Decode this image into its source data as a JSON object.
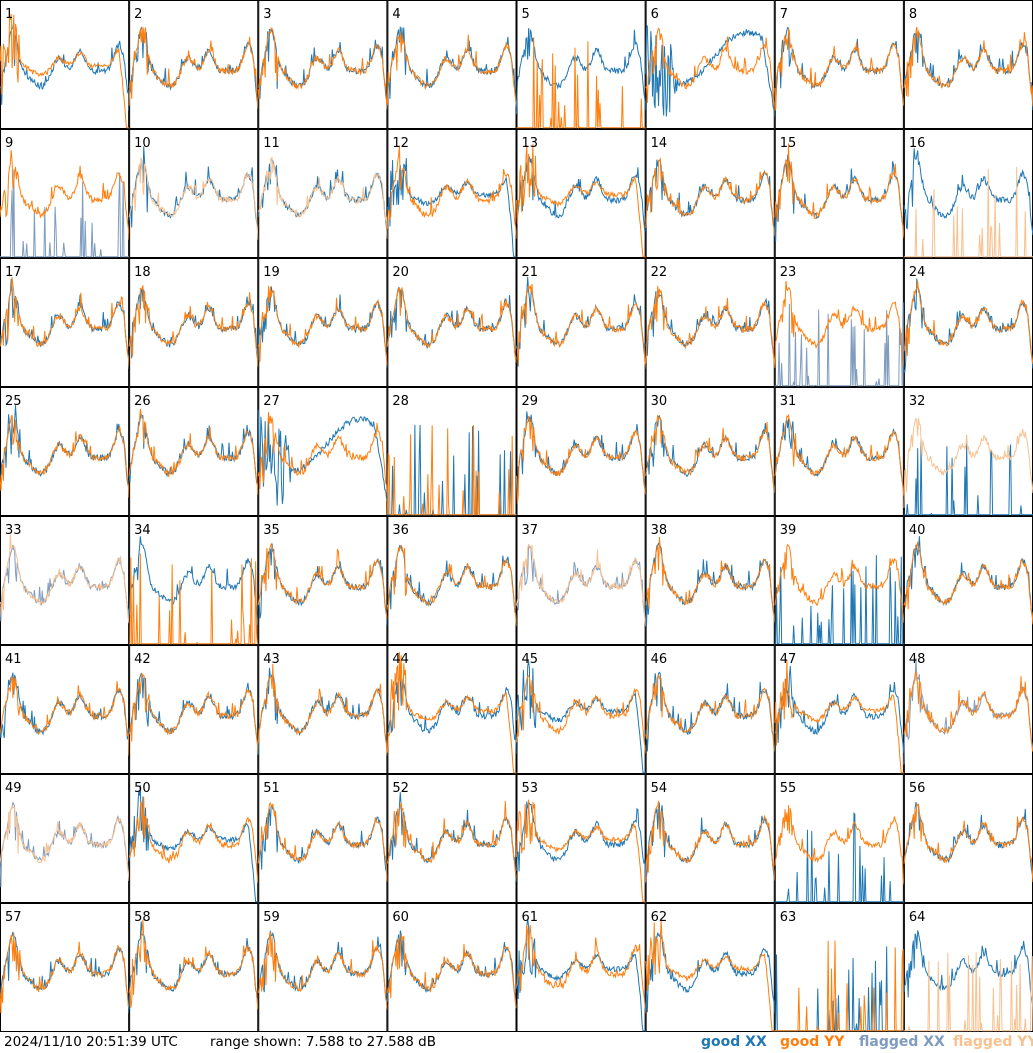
{
  "colors": {
    "good_xx": "#1f77b4",
    "good_yy": "#ff7f0e",
    "flagged_xx": "#7f9cbf",
    "flagged_yy": "#f8c190"
  },
  "footer": {
    "timestamp": "2024/11/10 20:51:39 UTC",
    "range": "range shown: 7.588 to 27.588 dB"
  },
  "chart_data": {
    "type": "line",
    "title": "",
    "grid_rows": 8,
    "grid_cols": 8,
    "ylim_db": [
      7.588,
      27.588
    ],
    "legend": {
      "placement": "bottom-right",
      "entries": [
        {
          "label": "good XX",
          "color": "#1f77b4"
        },
        {
          "label": "good YY",
          "color": "#ff7f0e"
        },
        {
          "label": "flagged XX",
          "color": "#7f9cbf"
        },
        {
          "label": "flagged YY",
          "color": "#f8c190"
        }
      ]
    },
    "panel_labels": [
      "1",
      "2",
      "3",
      "4",
      "5",
      "6",
      "7",
      "8",
      "9",
      "10",
      "11",
      "12",
      "13",
      "14",
      "15",
      "16",
      "17",
      "18",
      "19",
      "20",
      "21",
      "22",
      "23",
      "24",
      "25",
      "26",
      "27",
      "28",
      "29",
      "30",
      "31",
      "32",
      "33",
      "34",
      "35",
      "36",
      "37",
      "38",
      "39",
      "40",
      "41",
      "42",
      "43",
      "44",
      "45",
      "46",
      "47",
      "48",
      "49",
      "50",
      "51",
      "52",
      "53",
      "54",
      "55",
      "56",
      "57",
      "58",
      "59",
      "60",
      "61",
      "62",
      "63",
      "64"
    ],
    "panels": [
      {
        "xx": "good:n",
        "yy": "good:d"
      },
      {
        "xx": "good:n",
        "yy": "good:n"
      },
      {
        "xx": "good:n",
        "yy": "good:n"
      },
      {
        "xx": "good:n",
        "yy": "good:n"
      },
      {
        "xx": "good:n",
        "yy": "good:x"
      },
      {
        "xx": "good:b",
        "yy": "good:n"
      },
      {
        "xx": "good:n",
        "yy": "good:n"
      },
      {
        "xx": "good:n",
        "yy": "good:n"
      },
      {
        "xx": "flagged:x",
        "yy": "good:n"
      },
      {
        "xx": "good:n",
        "yy": "flagged:n"
      },
      {
        "xx": "good:n",
        "yy": "flagged:n"
      },
      {
        "xx": "good:d",
        "yy": "good:n"
      },
      {
        "xx": "good:n",
        "yy": "good:d"
      },
      {
        "xx": "good:n",
        "yy": "good:n"
      },
      {
        "xx": "good:n",
        "yy": "good:n"
      },
      {
        "xx": "good:n",
        "yy": "flagged:x"
      },
      {
        "xx": "good:n",
        "yy": "good:n"
      },
      {
        "xx": "good:n",
        "yy": "good:n"
      },
      {
        "xx": "good:n",
        "yy": "good:n"
      },
      {
        "xx": "good:n",
        "yy": "good:n"
      },
      {
        "xx": "good:n",
        "yy": "good:n"
      },
      {
        "xx": "good:n",
        "yy": "good:n"
      },
      {
        "xx": "flagged:x",
        "yy": "good:n"
      },
      {
        "xx": "good:n",
        "yy": "good:n"
      },
      {
        "xx": "good:n",
        "yy": "good:n"
      },
      {
        "xx": "good:n",
        "yy": "good:n"
      },
      {
        "xx": "good:b",
        "yy": "good:n"
      },
      {
        "xx": "good:x",
        "yy": "good:x"
      },
      {
        "xx": "good:n",
        "yy": "good:n"
      },
      {
        "xx": "good:n",
        "yy": "good:n"
      },
      {
        "xx": "good:n",
        "yy": "good:n"
      },
      {
        "xx": "good:x",
        "yy": "flagged:n"
      },
      {
        "xx": "flagged:n",
        "yy": "flagged:n"
      },
      {
        "xx": "good:n",
        "yy": "good:x"
      },
      {
        "xx": "good:n",
        "yy": "good:n"
      },
      {
        "xx": "good:n",
        "yy": "good:n"
      },
      {
        "xx": "flagged:n",
        "yy": "flagged:n"
      },
      {
        "xx": "good:n",
        "yy": "good:n"
      },
      {
        "xx": "good:x",
        "yy": "good:n"
      },
      {
        "xx": "good:n",
        "yy": "good:n"
      },
      {
        "xx": "good:n",
        "yy": "good:n"
      },
      {
        "xx": "good:n",
        "yy": "good:n"
      },
      {
        "xx": "good:n",
        "yy": "good:n"
      },
      {
        "xx": "good:n",
        "yy": "good:d"
      },
      {
        "xx": "good:d",
        "yy": "good:n"
      },
      {
        "xx": "good:n",
        "yy": "good:n"
      },
      {
        "xx": "good:n",
        "yy": "good:d"
      },
      {
        "xx": "flagged:n",
        "yy": "good:n"
      },
      {
        "xx": "flagged:n",
        "yy": "flagged:n"
      },
      {
        "xx": "good:d",
        "yy": "good:n"
      },
      {
        "xx": "good:n",
        "yy": "good:n"
      },
      {
        "xx": "good:n",
        "yy": "good:n"
      },
      {
        "xx": "good:n",
        "yy": "good:d"
      },
      {
        "xx": "good:n",
        "yy": "good:n"
      },
      {
        "xx": "good:x",
        "yy": "good:n"
      },
      {
        "xx": "good:n",
        "yy": "good:n"
      },
      {
        "xx": "good:n",
        "yy": "good:n"
      },
      {
        "xx": "good:n",
        "yy": "good:n"
      },
      {
        "xx": "good:n",
        "yy": "good:n"
      },
      {
        "xx": "good:n",
        "yy": "good:n"
      },
      {
        "xx": "good:d",
        "yy": "good:n"
      },
      {
        "xx": "good:n",
        "yy": "good:d"
      },
      {
        "xx": "good:x",
        "yy": "good:x"
      },
      {
        "xx": "good:n",
        "yy": "flagged:x"
      }
    ]
  }
}
